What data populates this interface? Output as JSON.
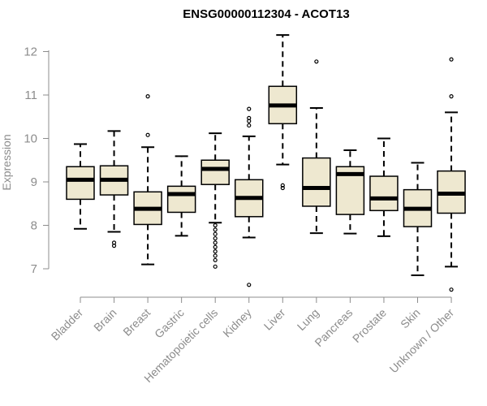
{
  "chart_data": {
    "type": "box",
    "title": "ENSG00000112304 - ACOT13",
    "xlabel": "",
    "ylabel": "Expression",
    "ylim": [
      6.4,
      12.5
    ],
    "yticks": [
      7,
      8,
      9,
      10,
      11,
      12
    ],
    "colors": {
      "box_fill": "#eee8d0",
      "stroke": "#000000",
      "axis": "#8c8c8c"
    },
    "categories": [
      "Bladder",
      "Brain",
      "Breast",
      "Gastric",
      "Hematopoietic cells",
      "Kidney",
      "Liver",
      "Lung",
      "Pancreas",
      "Prostate",
      "Skin",
      "Unknown / Other"
    ],
    "boxes": [
      {
        "name": "Bladder",
        "whisker_low": 7.92,
        "q1": 8.6,
        "median": 9.05,
        "q3": 9.35,
        "whisker_high": 9.87,
        "outliers": []
      },
      {
        "name": "Brain",
        "whisker_low": 7.85,
        "q1": 8.7,
        "median": 9.05,
        "q3": 9.37,
        "whisker_high": 10.17,
        "outliers": [
          7.6,
          7.53
        ]
      },
      {
        "name": "Breast",
        "whisker_low": 7.1,
        "q1": 8.02,
        "median": 8.38,
        "q3": 8.77,
        "whisker_high": 9.8,
        "outliers": [
          10.08,
          10.97
        ]
      },
      {
        "name": "Gastric",
        "whisker_low": 7.76,
        "q1": 8.3,
        "median": 8.72,
        "q3": 8.9,
        "whisker_high": 9.59,
        "outliers": []
      },
      {
        "name": "Hematopoietic cells",
        "whisker_low": 8.06,
        "q1": 8.94,
        "median": 9.3,
        "q3": 9.5,
        "whisker_high": 10.12,
        "outliers": [
          8.0,
          7.9,
          7.8,
          7.7,
          7.6,
          7.5,
          7.4,
          7.3,
          7.2,
          7.05
        ]
      },
      {
        "name": "Kidney",
        "whisker_low": 7.72,
        "q1": 8.2,
        "median": 8.63,
        "q3": 9.05,
        "whisker_high": 10.05,
        "outliers": [
          10.3,
          10.4,
          10.47,
          10.68,
          6.63
        ]
      },
      {
        "name": "Liver",
        "whisker_low": 9.4,
        "q1": 10.34,
        "median": 10.76,
        "q3": 11.2,
        "whisker_high": 12.38,
        "outliers": [
          8.86,
          8.92
        ]
      },
      {
        "name": "Lung",
        "whisker_low": 7.82,
        "q1": 8.44,
        "median": 8.86,
        "q3": 9.55,
        "whisker_high": 10.7,
        "outliers": [
          11.77
        ]
      },
      {
        "name": "Pancreas",
        "whisker_low": 7.81,
        "q1": 8.25,
        "median": 9.18,
        "q3": 9.35,
        "whisker_high": 9.73,
        "outliers": []
      },
      {
        "name": "Prostate",
        "whisker_low": 7.75,
        "q1": 8.34,
        "median": 8.62,
        "q3": 9.13,
        "whisker_high": 10.0,
        "outliers": []
      },
      {
        "name": "Skin",
        "whisker_low": 6.85,
        "q1": 7.97,
        "median": 8.38,
        "q3": 8.82,
        "whisker_high": 9.44,
        "outliers": []
      },
      {
        "name": "Unknown / Other",
        "whisker_low": 7.05,
        "q1": 8.28,
        "median": 8.73,
        "q3": 9.25,
        "whisker_high": 10.6,
        "outliers": [
          10.97,
          11.82,
          6.52
        ]
      }
    ]
  }
}
